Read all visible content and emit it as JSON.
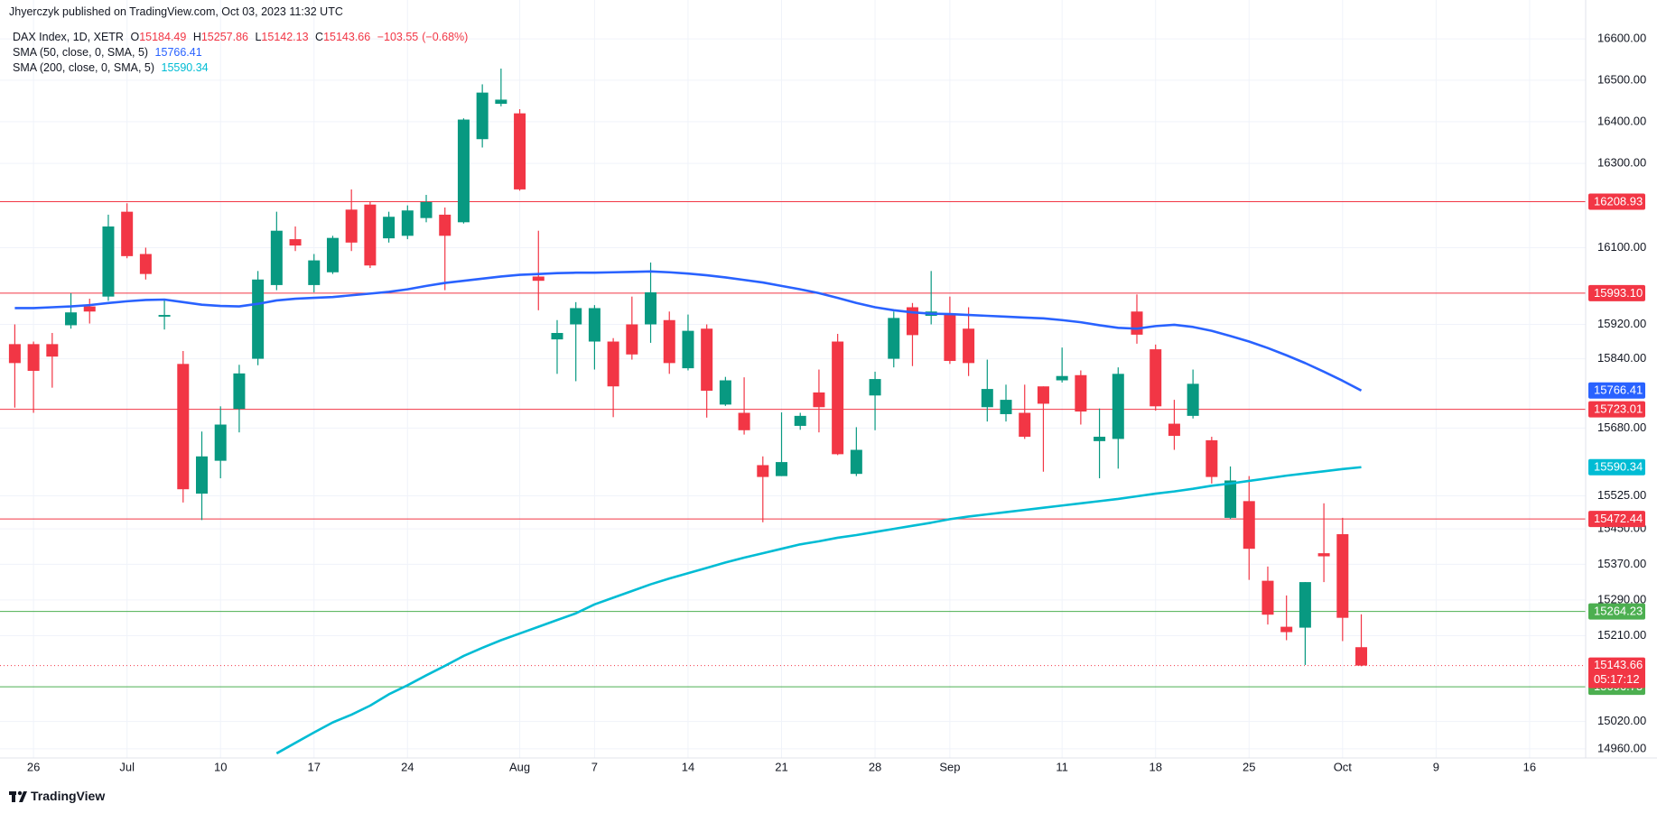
{
  "header": {
    "publisher": "Jhyerczyk published on TradingView.com, Oct 03, 2023 11:32 UTC"
  },
  "footer": {
    "brand": "TradingView"
  },
  "chart_data": {
    "type": "candlestick",
    "title": "DAX Index, 1D, XETR",
    "ohlc_prefixes": [
      "O",
      "H",
      "L",
      "C"
    ],
    "change": {
      "value": -103.55,
      "label": "−103.55"
    },
    "change_percent": {
      "value": -0.68,
      "label": "(−0.68%)"
    },
    "categories": [
      null,
      "26",
      null,
      null,
      null,
      null,
      "Jul",
      null,
      null,
      null,
      null,
      "10",
      null,
      null,
      null,
      null,
      "17",
      null,
      null,
      null,
      null,
      "24",
      null,
      null,
      null,
      null,
      null,
      "Aug",
      null,
      null,
      null,
      "7",
      null,
      null,
      null,
      null,
      "14",
      null,
      null,
      null,
      null,
      "21",
      null,
      null,
      null,
      null,
      "28",
      null,
      null,
      null,
      "Sep",
      null,
      null,
      null,
      null,
      null,
      "11",
      null,
      null,
      null,
      null,
      "18",
      null,
      null,
      null,
      null,
      "25",
      null,
      null,
      null,
      null,
      "Oct",
      null,
      null,
      null,
      null,
      "9",
      null,
      null,
      null,
      null,
      "16",
      null,
      null
    ],
    "open": [
      15874,
      15874,
      15874,
      15918,
      15962,
      15985,
      16185,
      16085,
      15938,
      15828,
      15530,
      15605,
      15724,
      15840,
      16012,
      16120,
      16012,
      16042,
      16190,
      16202,
      16122,
      16128,
      16170,
      16178,
      16160,
      16358,
      16443,
      16420,
      16032,
      15885,
      15920,
      15880,
      15880,
      15920,
      15920,
      15930,
      15818,
      15910,
      15734,
      15715,
      15595,
      15570,
      15685,
      15762,
      15880,
      15575,
      15755,
      15840,
      15960,
      15940,
      15944,
      15910,
      15728,
      15712,
      15715,
      15776,
      15790,
      15802,
      15650,
      15655,
      15950,
      15862,
      15690,
      15708,
      15652,
      15475,
      15513,
      15333,
      15230,
      15228,
      15395,
      15438,
      15184.49,
      null,
      null,
      null,
      null,
      null,
      null,
      null,
      null,
      null,
      null,
      null
    ],
    "high": [
      15920,
      15880,
      15900,
      15993,
      15980,
      16178,
      16205,
      16100,
      15978,
      15858,
      15672,
      15730,
      15826,
      16045,
      16185,
      16150,
      16085,
      16128,
      16238,
      16210,
      16185,
      16200,
      16225,
      16195,
      16408,
      16490,
      16528,
      16430,
      16140,
      15930,
      15972,
      15965,
      15888,
      15985,
      16065,
      15950,
      15943,
      15920,
      15798,
      15797,
      15615,
      15716,
      15715,
      15815,
      15898,
      15682,
      15810,
      15950,
      15970,
      16045,
      15985,
      15960,
      15838,
      15780,
      15780,
      15776,
      15866,
      15813,
      15725,
      15820,
      15990,
      15873,
      15745,
      15815,
      15660,
      15592,
      15570,
      15365,
      15300,
      15330,
      15508,
      15475,
      15257.86,
      null,
      null,
      null,
      null,
      null,
      null,
      null,
      null,
      null,
      null,
      null
    ],
    "low": [
      15727,
      15715,
      15773,
      15910,
      15922,
      15975,
      16075,
      16025,
      15908,
      15510,
      15470,
      15565,
      15670,
      15825,
      16000,
      16092,
      15995,
      16038,
      16092,
      16052,
      16112,
      16120,
      16160,
      16000,
      16157,
      16338,
      16437,
      16235,
      15953,
      15805,
      15788,
      15815,
      15705,
      15838,
      15877,
      15805,
      15813,
      15704,
      15731,
      15665,
      15465,
      15570,
      15676,
      15670,
      15618,
      15570,
      15675,
      15820,
      15823,
      15920,
      15828,
      15800,
      15695,
      15695,
      15655,
      15580,
      15785,
      15688,
      15565,
      15587,
      15875,
      15720,
      15630,
      15702,
      15553,
      15472,
      15335,
      15235,
      15200,
      15145,
      15330,
      15198,
      15142.13,
      null,
      null,
      null,
      null,
      null,
      null,
      null,
      null,
      null,
      null,
      null
    ],
    "close": [
      15830,
      15812,
      15845,
      15948,
      15950,
      16150,
      16080,
      16038,
      15942,
      15540,
      15615,
      15688,
      15806,
      16025,
      16140,
      16105,
      16070,
      16123,
      16112,
      16058,
      16173,
      16188,
      16208,
      16128,
      16405,
      16470,
      16453,
      16238,
      16022,
      15900,
      15958,
      15958,
      15776,
      15850,
      15995,
      15830,
      15905,
      15766,
      15790,
      15675,
      15568,
      15602,
      15708,
      15728,
      15620,
      15630,
      15793,
      15935,
      15895,
      15950,
      15835,
      15830,
      15770,
      15745,
      15660,
      15736,
      15800,
      15718,
      15660,
      15805,
      15896,
      15730,
      15662,
      15782,
      15568,
      15560,
      15405,
      15257,
      15218,
      15330,
      15388,
      15250,
      15143.66,
      null,
      null,
      null,
      null,
      null,
      null,
      null,
      null,
      null,
      null,
      null
    ],
    "up_color": "#089981",
    "down_color": "#f23645",
    "series": [
      {
        "name": "SMA (50, close, 0, SMA, 5)",
        "color": "#2962ff",
        "values": [
          15958,
          15958,
          15960,
          15962,
          15965,
          15970,
          15974,
          15977,
          15978,
          15972,
          15966,
          15963,
          15962,
          15968,
          15976,
          15980,
          15982,
          15984,
          15988,
          15992,
          15996,
          16002,
          16010,
          16017,
          16022,
          16027,
          16032,
          16036,
          16038,
          16040,
          16041,
          16041,
          16042,
          16043,
          16044,
          16042,
          16039,
          16035,
          16030,
          16024,
          16018,
          16010,
          16002,
          15993,
          15982,
          15970,
          15960,
          15953,
          15948,
          15945,
          15944,
          15942,
          15940,
          15938,
          15936,
          15934,
          15930,
          15925,
          15918,
          15912,
          15910,
          15916,
          15919,
          15914,
          15905,
          15893,
          15880,
          15865,
          15848,
          15830,
          15810,
          15789,
          15766.41,
          null,
          null,
          null,
          null,
          null,
          null,
          null,
          null,
          null,
          null,
          null
        ]
      },
      {
        "name": "SMA (200, close, 0, SMA, 5)",
        "color": "#00bcd4",
        "values": [
          null,
          null,
          null,
          null,
          null,
          null,
          null,
          null,
          null,
          null,
          null,
          null,
          null,
          null,
          14950,
          14973,
          14996,
          15018,
          15035,
          15055,
          15080,
          15100,
          15122,
          15143,
          15165,
          15183,
          15200,
          15215,
          15230,
          15245,
          15260,
          15280,
          15295,
          15310,
          15325,
          15338,
          15350,
          15362,
          15374,
          15385,
          15395,
          15405,
          15415,
          15422,
          15430,
          15436,
          15443,
          15450,
          15457,
          15464,
          15472,
          15478,
          15483,
          15488,
          15493,
          15498,
          15503,
          15508,
          15513,
          15518,
          15524,
          15530,
          15535,
          15541,
          15548,
          15553,
          15559,
          15565,
          15571,
          15576,
          15581,
          15586,
          15590.34,
          null,
          null,
          null,
          null,
          null,
          null,
          null,
          null,
          null,
          null,
          null
        ]
      }
    ],
    "hlines": [
      {
        "value": 16208.93,
        "color": "#f23645"
      },
      {
        "value": 15993.1,
        "label": "15993.10",
        "color": "#f23645"
      },
      {
        "value": 15723.01,
        "color": "#f23645"
      },
      {
        "value": 15472.44,
        "color": "#f23645"
      },
      {
        "value": 15264.23,
        "color": "#4caf50"
      },
      {
        "value": 15096.75,
        "color": "#4caf50"
      }
    ],
    "last_price_countdown": "05:17:12",
    "ylim": [
      14940,
      16695
    ],
    "yticks": [
      {
        "value": 16600,
        "label": "16600.00"
      },
      {
        "value": 16500,
        "label": "16500.00"
      },
      {
        "value": 16400,
        "label": "16400.00"
      },
      {
        "value": 16300,
        "label": "16300.00"
      },
      {
        "value": 16100,
        "label": "16100.00"
      },
      {
        "value": 15920,
        "label": "15920.00"
      },
      {
        "value": 15840,
        "label": "15840.00"
      },
      {
        "value": 15680,
        "label": "15680.00"
      },
      {
        "value": 15525,
        "label": "15525.00"
      },
      {
        "value": 15450,
        "label": "15450.00"
      },
      {
        "value": 15370,
        "label": "15370.00"
      },
      {
        "value": 15290,
        "label": "15290.00"
      },
      {
        "value": 15210,
        "label": "15210.00"
      },
      {
        "value": 15020,
        "label": "15020.00"
      },
      {
        "value": 14960,
        "label": "14960.00"
      }
    ],
    "log_scale": true,
    "grid": true
  }
}
